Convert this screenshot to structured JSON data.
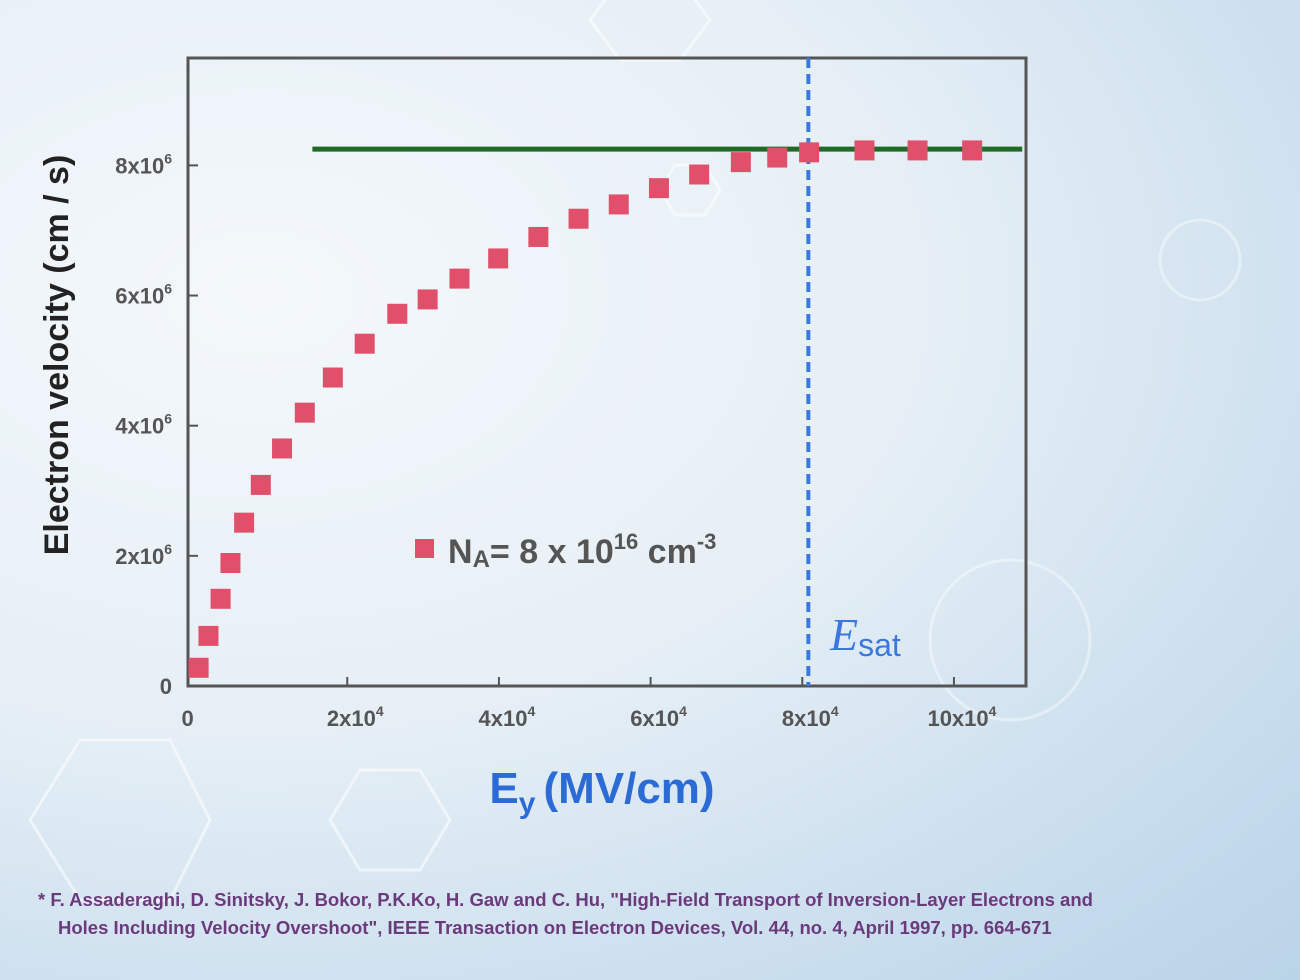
{
  "chart_data": {
    "type": "scatter",
    "xlabel": "Ey (MV/cm)",
    "xlabel_main": "E",
    "xlabel_sub": "y",
    "xlabel_unit": "(MV/cm)",
    "ylabel": "Electron velocity (cm / s)",
    "xlim": [
      -1000,
      109500
    ],
    "ylim": [
      0,
      9650000
    ],
    "x_ticks": [
      {
        "value": 0,
        "base": "0",
        "exp": ""
      },
      {
        "value": 20000,
        "base": "2x10",
        "exp": "4"
      },
      {
        "value": 40000,
        "base": "4x10",
        "exp": "4"
      },
      {
        "value": 60000,
        "base": "6x10",
        "exp": "4"
      },
      {
        "value": 80000,
        "base": "8x10",
        "exp": "4"
      },
      {
        "value": 100000,
        "base": "10x10",
        "exp": "4"
      }
    ],
    "y_ticks": [
      {
        "value": 0,
        "base": "0",
        "exp": ""
      },
      {
        "value": 2000000,
        "base": "2x10",
        "exp": "6"
      },
      {
        "value": 4000000,
        "base": "4x10",
        "exp": "6"
      },
      {
        "value": 6000000,
        "base": "6x10",
        "exp": "6"
      },
      {
        "value": 8000000,
        "base": "8x10",
        "exp": "6"
      }
    ],
    "grid": false,
    "series": [
      {
        "name": "NA= 8 x 10^16 cm^-3",
        "color": "#e0506a",
        "marker": "square",
        "x": [
          400,
          1700,
          3300,
          4600,
          6400,
          8600,
          11400,
          14400,
          18100,
          22300,
          26600,
          30600,
          34800,
          39900,
          45200,
          50500,
          55800,
          61100,
          66400,
          71900,
          76700,
          80900,
          88200,
          95200,
          102400
        ],
        "y": [
          280000,
          770000,
          1340000,
          1890000,
          2510000,
          3090000,
          3650000,
          4200000,
          4740000,
          5260000,
          5720000,
          5940000,
          6260000,
          6570000,
          6900000,
          7180000,
          7400000,
          7650000,
          7860000,
          8050000,
          8120000,
          8200000,
          8230000,
          8230000,
          8230000
        ]
      }
    ],
    "saturation_line": {
      "y": 8250000,
      "x_start": 15400,
      "x_end": 109000,
      "color": "#1f6b25"
    },
    "esat_line": {
      "x": 80800,
      "color": "#3a78e0",
      "label_main": "E",
      "label_sub": "sat"
    },
    "legend": {
      "placement": "center",
      "text_main": "N",
      "text_sub": "A",
      "text_eq": "= 8 x 10",
      "text_exp": "16",
      "text_unit": " cm",
      "text_unit_exp": "-3"
    }
  },
  "citation": {
    "line1": "* F. Assaderaghi, D. Sinitsky, J. Bokor, P.K.Ko, H. Gaw and C. Hu, \"High-Field Transport of Inversion-Layer Electrons and",
    "line2": "Holes Including Velocity Overshoot\", IEEE Transaction on Electron Devices, Vol. 44, no. 4, April 1997,  pp. 664-671"
  }
}
